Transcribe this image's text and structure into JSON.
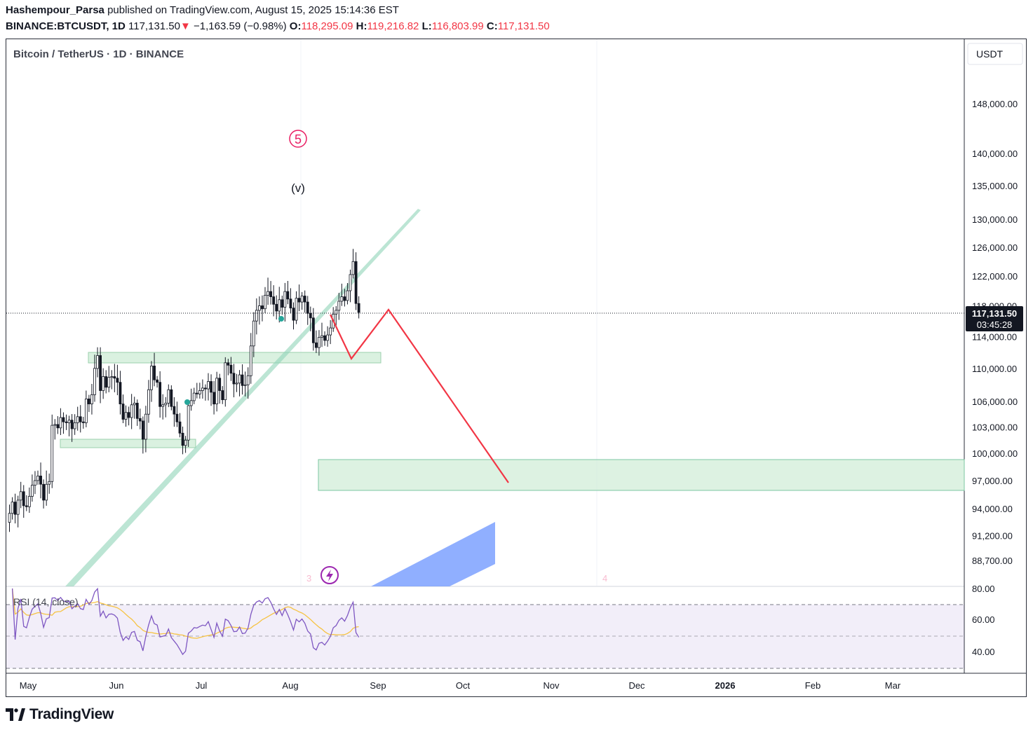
{
  "header": {
    "author": "Hashempour_Parsa",
    "published": "published on TradingView.com, August 15, 2025 15:14:36 EST",
    "symbol": "BINANCE:BTCUSDT, 1D",
    "last": "117,131.50",
    "arrow": "▼",
    "change": "−1,163.59 (−0.98%)",
    "o_label": "O:",
    "o_val": "118,295.09",
    "h_label": "H:",
    "h_val": "119,216.82",
    "l_label": "L:",
    "l_val": "116,803.99",
    "c_label": "C:",
    "c_val": "117,131.50"
  },
  "chart_data": {
    "type": "candlestick",
    "title": "Bitcoin / TetherUS · 1D · BINANCE",
    "currency": "USDT",
    "scale": "log",
    "y_ticks": [
      148000,
      140000,
      135000,
      130000,
      126000,
      122000,
      118000,
      114000,
      110000,
      106000,
      103000,
      100000,
      97000,
      94000,
      91200,
      88700
    ],
    "y_tick_labels": [
      "148,000.00",
      "140,000.00",
      "135,000.00",
      "130,000.00",
      "126,000.00",
      "122,000.00",
      "118,000.00",
      "114,000.00",
      "110,000.00",
      "106,000.00",
      "103,000.00",
      "100,000.00",
      "97,000.00",
      "94,000.00",
      "91,200.00",
      "88,700.00"
    ],
    "current_price_label": "117,131.50",
    "countdown_label": "03:45:28",
    "x_ticks": [
      "May",
      "Jun",
      "Jul",
      "Aug",
      "Sep",
      "Oct",
      "Nov",
      "Dec",
      "2026",
      "Feb",
      "Mar"
    ],
    "closes": [
      93500,
      94700,
      93400,
      94900,
      95800,
      94300,
      94200,
      95300,
      96500,
      97000,
      97500,
      96600,
      94900,
      96600,
      96900,
      103200,
      103300,
      102900,
      104100,
      103600,
      103500,
      103800,
      102800,
      103500,
      104200,
      103600,
      103500,
      106300,
      105700,
      106800,
      110000,
      111600,
      107300,
      109000,
      107700,
      108900,
      109000,
      108800,
      108300,
      105700,
      103900,
      104700,
      104100,
      105600,
      105800,
      104000,
      103700,
      101600,
      104500,
      107400,
      110300,
      108600,
      108300,
      105400,
      105600,
      105800,
      107400,
      105400,
      104500,
      103600,
      102300,
      100900,
      101500,
      105500,
      106100,
      107000,
      106900,
      107300,
      107600,
      107500,
      108400,
      107100,
      105700,
      108800,
      107300,
      106200,
      110700,
      110400,
      109400,
      108100,
      108200,
      109200,
      107900,
      108000,
      109100,
      112800,
      116000,
      117400,
      118000,
      117600,
      119400,
      119900,
      119200,
      118200,
      117300,
      118800,
      117800,
      119900,
      118900,
      117700,
      116100,
      119000,
      118500,
      119300,
      118500,
      117000,
      116400,
      113200,
      112600,
      113900,
      114100,
      113500,
      114200,
      115100,
      116900,
      117400,
      118600,
      119200,
      118700,
      120000,
      122200,
      124000,
      118300,
      117131
    ],
    "rsi": {
      "label": "RSI (14, close)",
      "levels": [
        70,
        50,
        30
      ],
      "y_tick_labels": [
        "80.00",
        "60.00",
        "40.00"
      ]
    },
    "annotations": {
      "wave5": "5",
      "wave_v": "(v)",
      "lbl3": "3",
      "lbl4": "4"
    }
  },
  "footer": {
    "brand": "TradingView"
  },
  "colors": {
    "up": "#26a69a",
    "down": "#ef5350",
    "zone": "#d1edd8",
    "trend": "#8fd4b8",
    "path": "#f23645",
    "blue": "#6b94ff",
    "rsi": "#7e57c2",
    "rsi_ma": "#f6c343"
  }
}
